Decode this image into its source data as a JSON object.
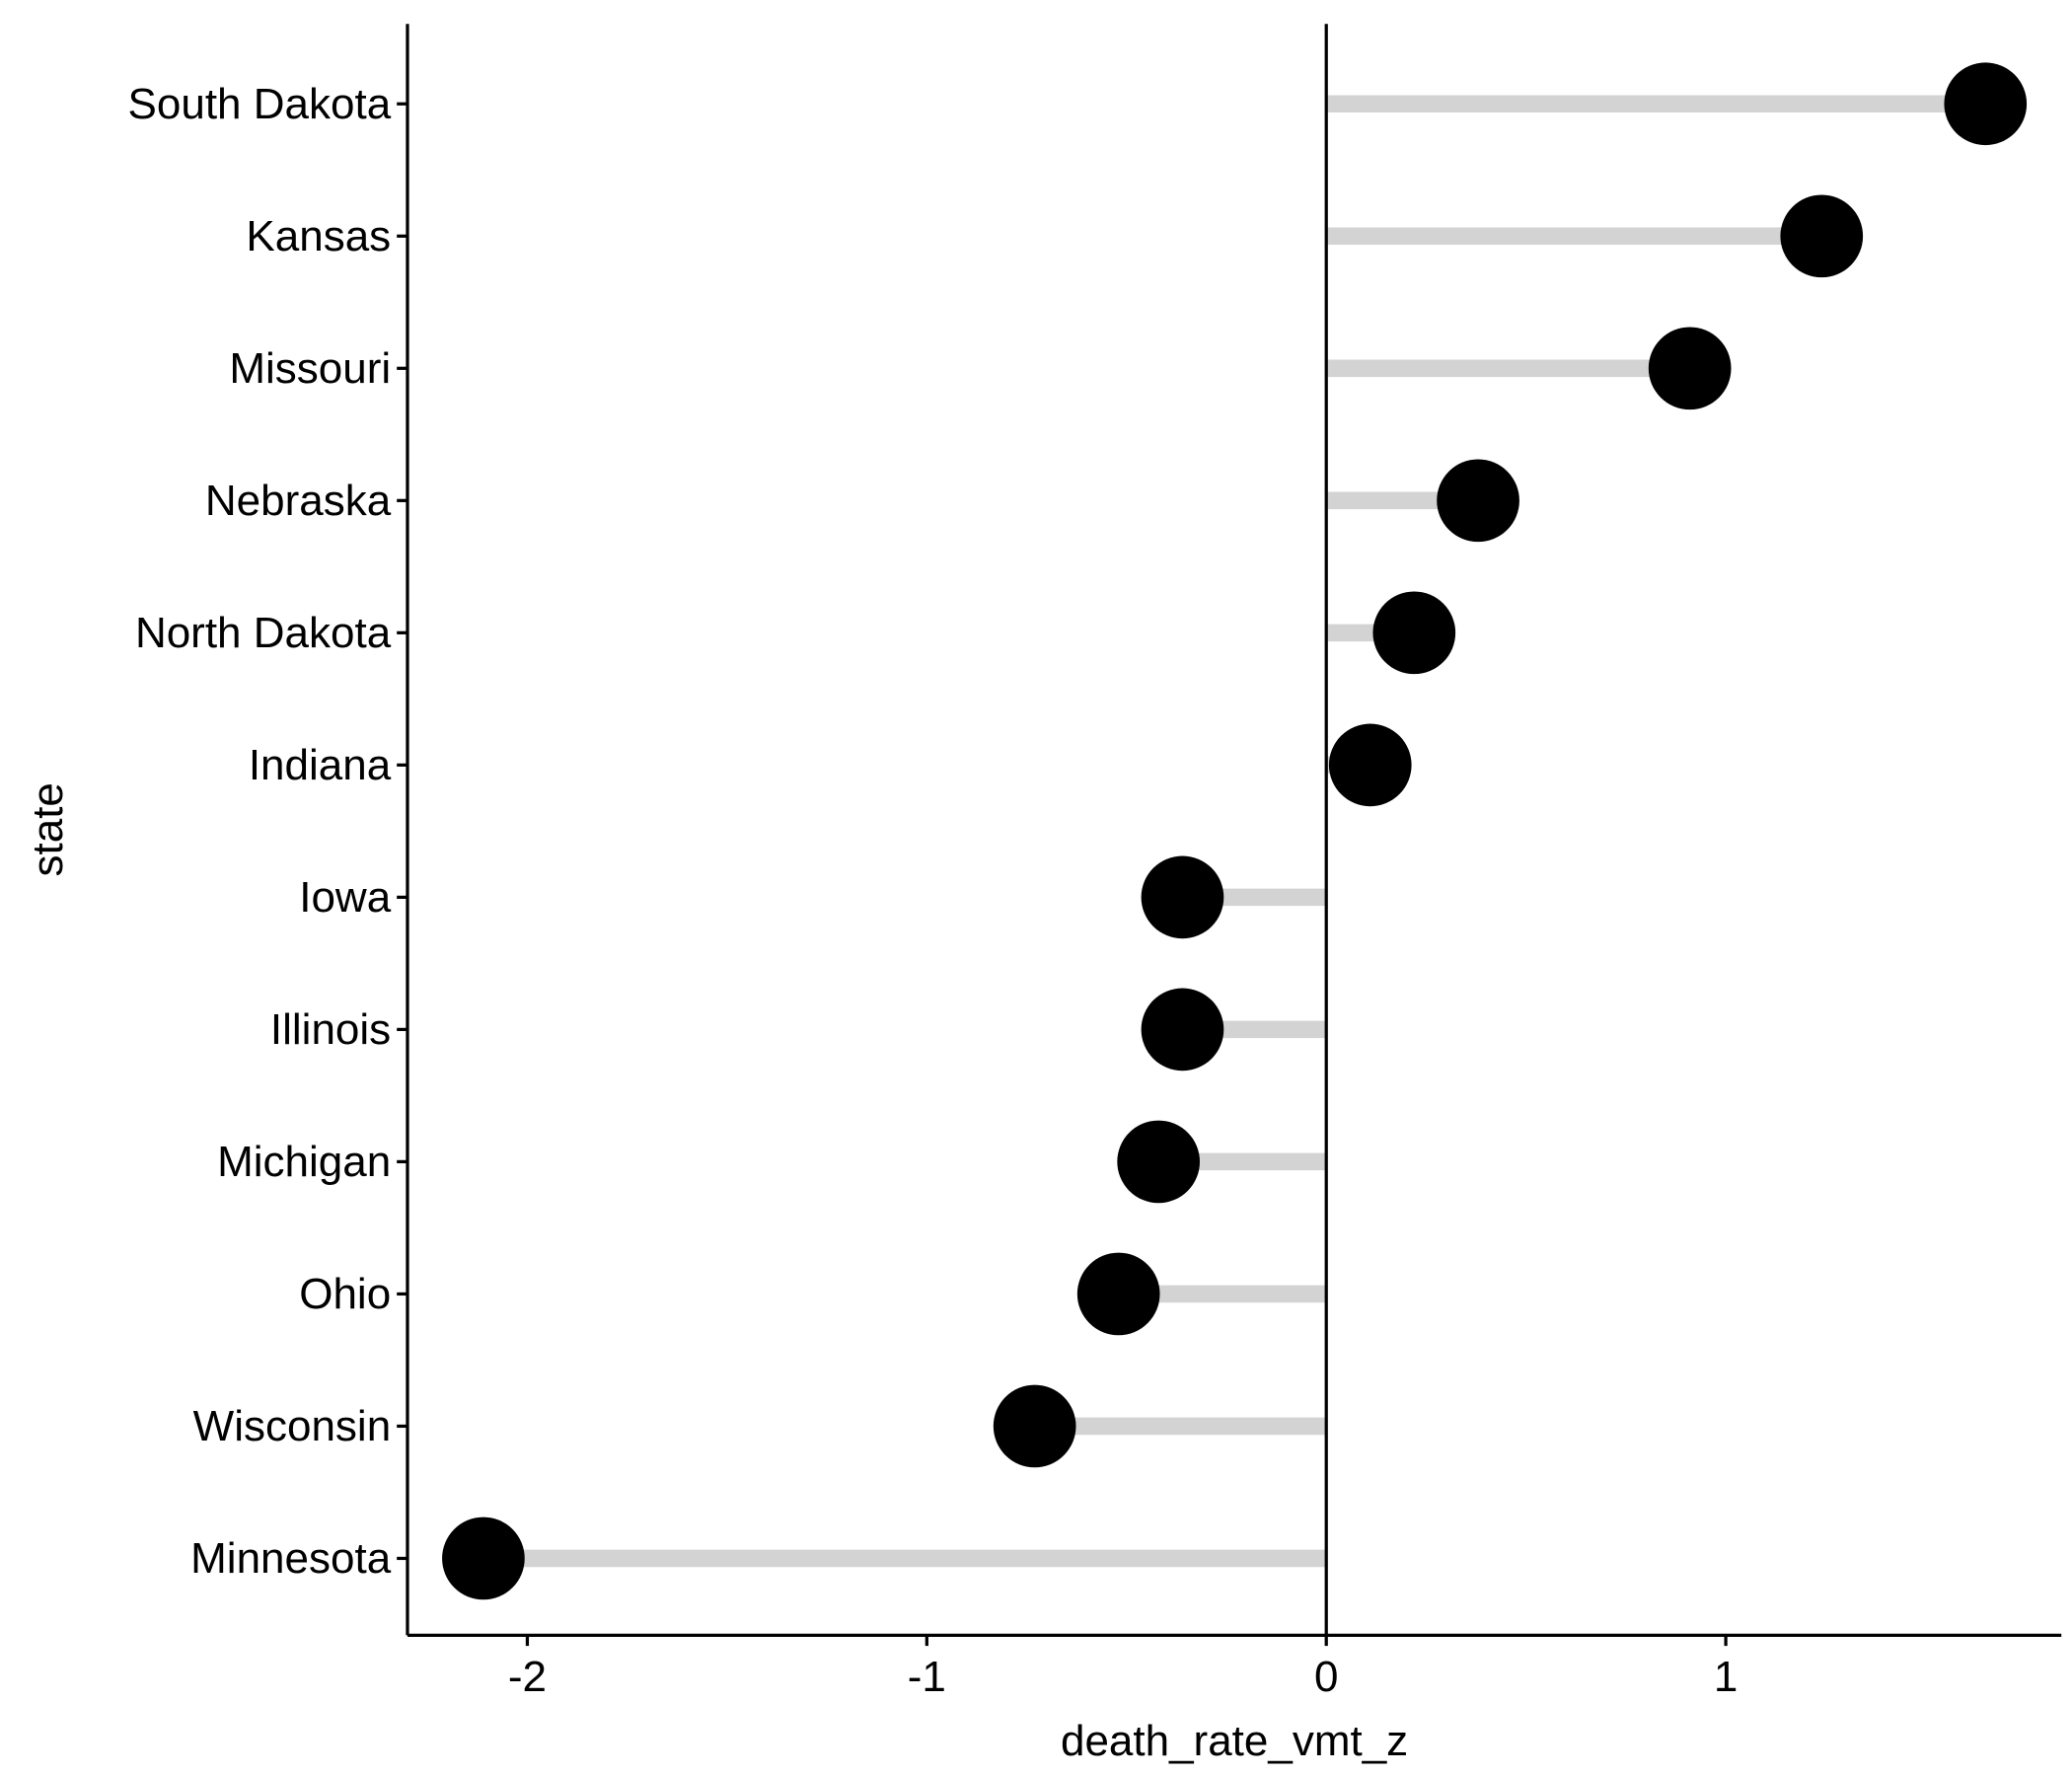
{
  "chart_data": {
    "type": "lollipop",
    "xlabel": "death_rate_vmt_z",
    "ylabel": "state",
    "xlim": [
      -2.3,
      1.85
    ],
    "xticks": [
      -2,
      -1,
      0,
      1
    ],
    "xtick_labels": [
      "-2",
      "-1",
      "0",
      "1"
    ],
    "categories": [
      "South Dakota",
      "Kansas",
      "Missouri",
      "Nebraska",
      "North Dakota",
      "Indiana",
      "Iowa",
      "Illinois",
      "Michigan",
      "Ohio",
      "Wisconsin",
      "Minnesota"
    ],
    "values": [
      1.65,
      1.24,
      0.91,
      0.38,
      0.22,
      0.11,
      -0.36,
      -0.36,
      -0.42,
      -0.52,
      -0.73,
      -2.11
    ],
    "grid": false,
    "legend": "none",
    "colors": {
      "stem": "#d3d3d3",
      "point": "#000000",
      "axis": "#000000",
      "zero_line": "#000000"
    }
  }
}
